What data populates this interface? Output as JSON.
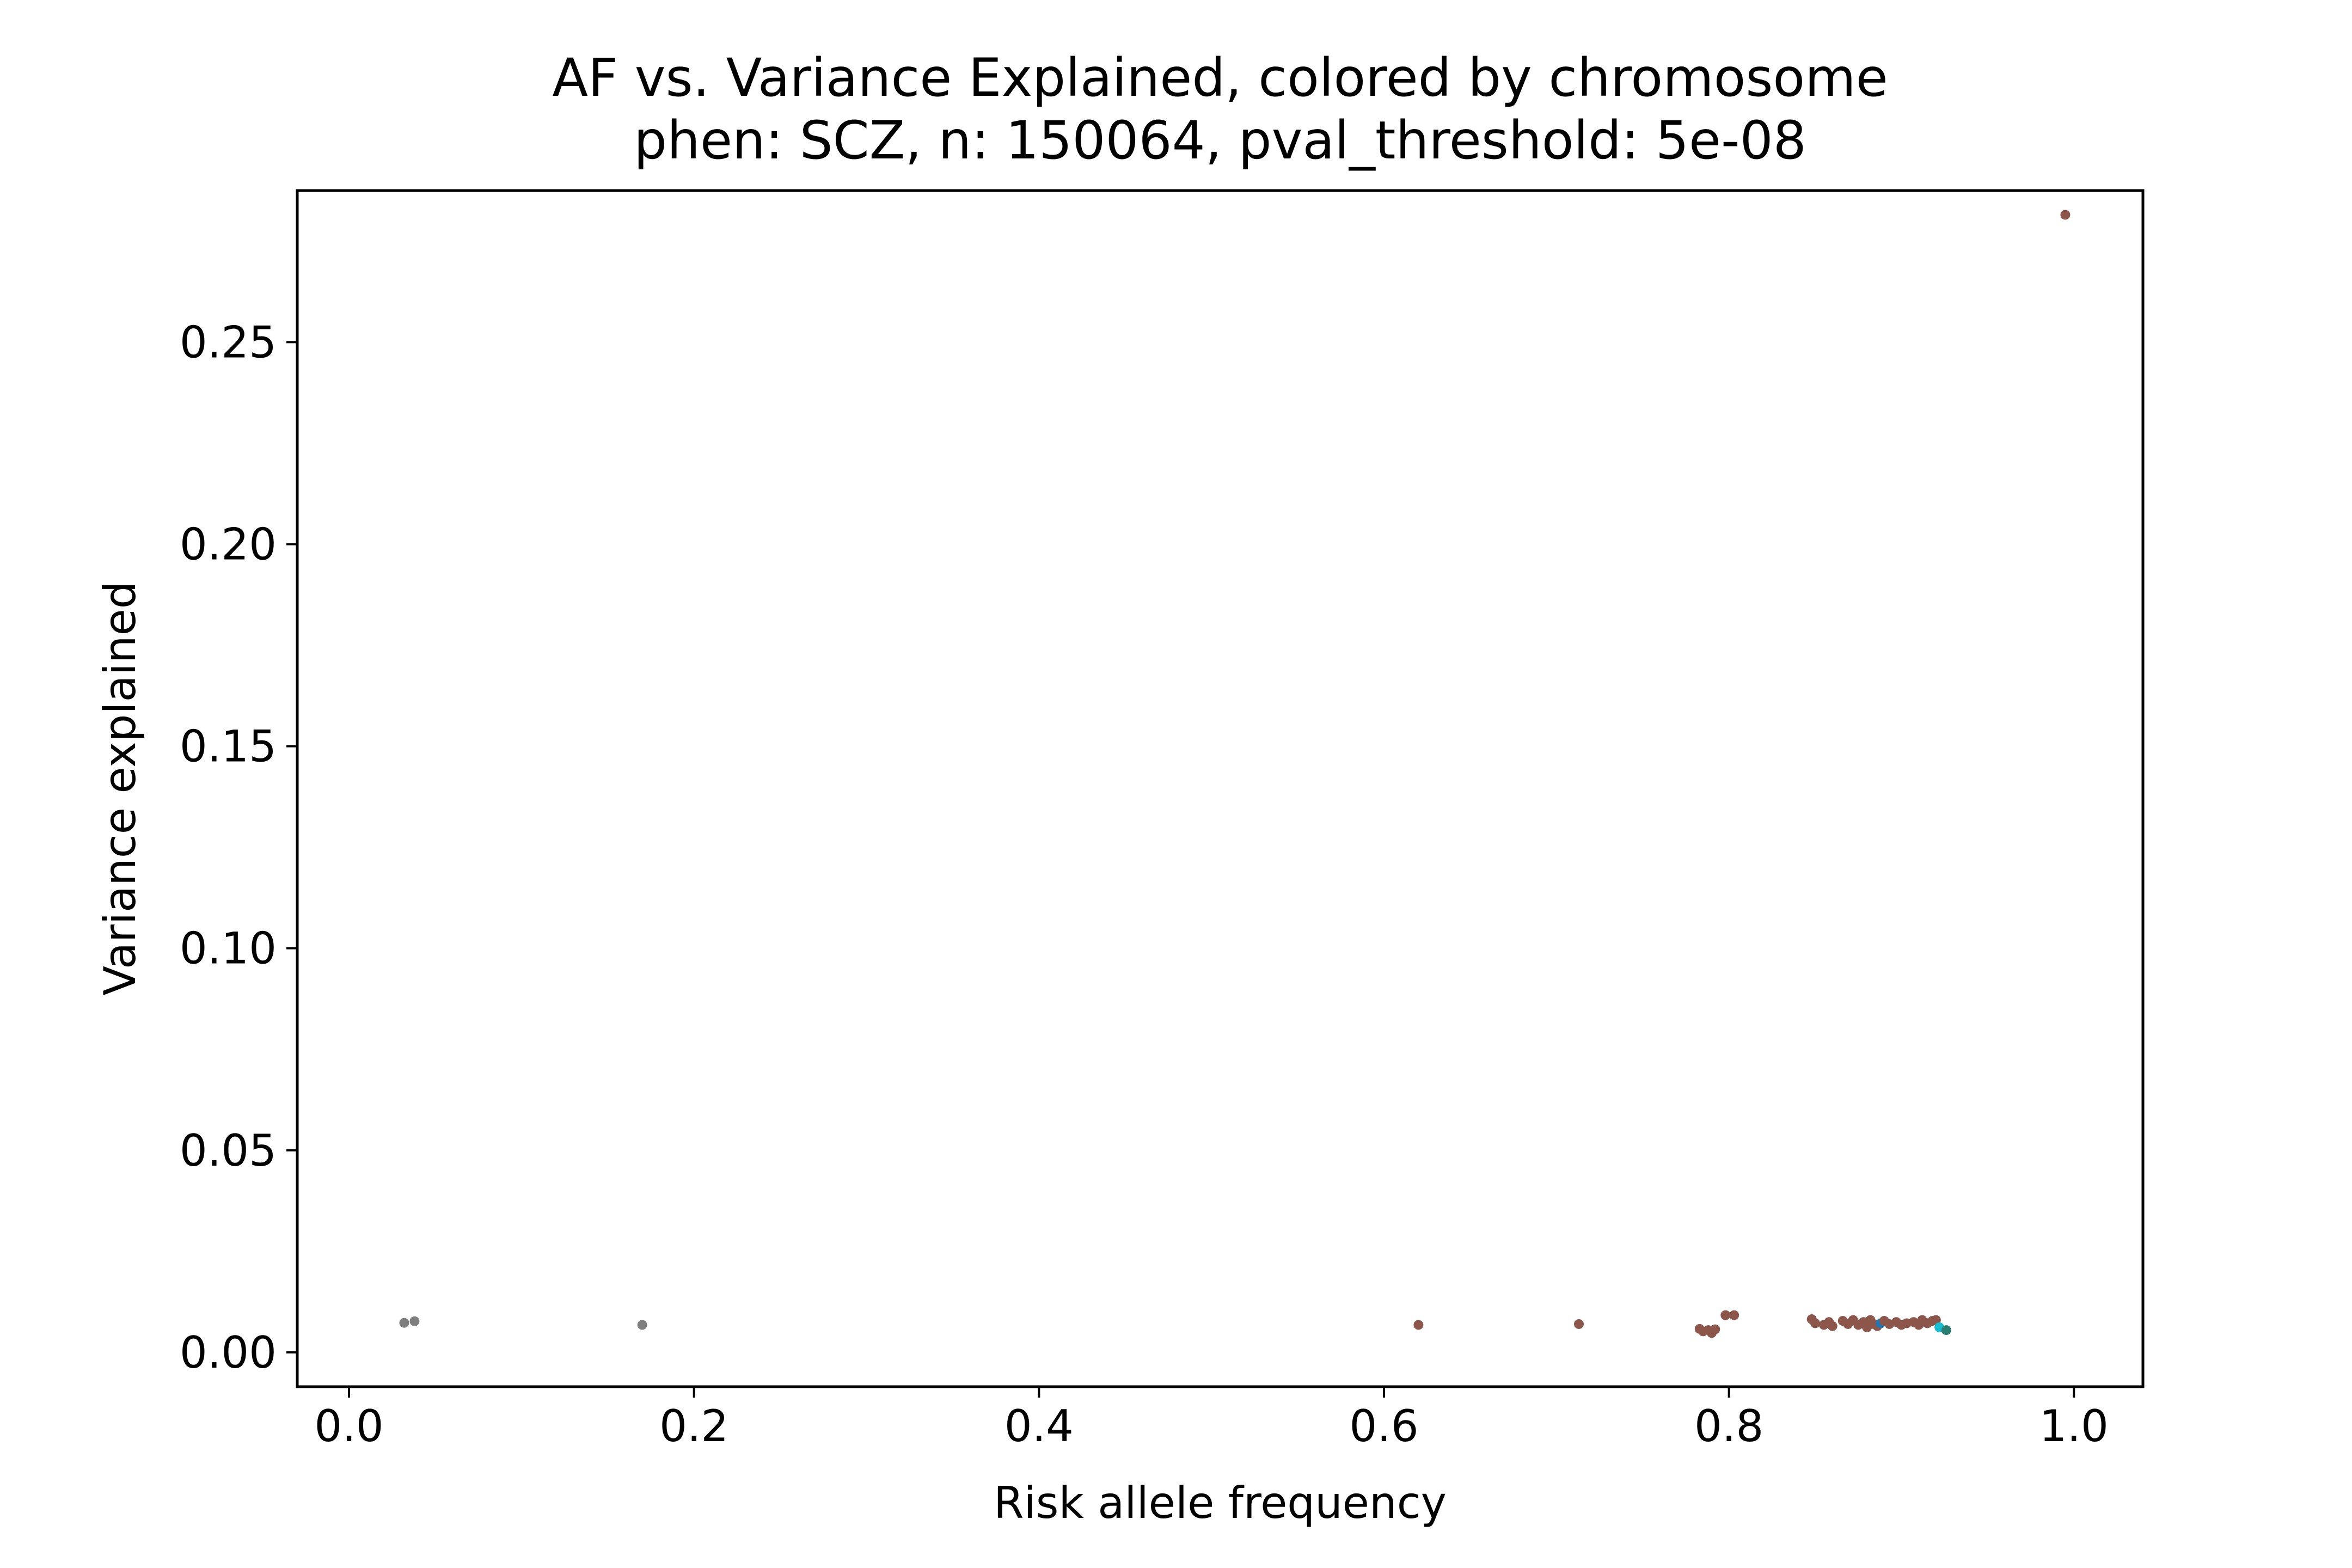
{
  "chart_data": {
    "type": "scatter",
    "title": "AF vs. Variance Explained, colored by chromosome",
    "subtitle": "phen: SCZ, n: 150064, pval_threshold: 5e-08",
    "xlabel": "Risk allele frequency",
    "ylabel": "Variance explained",
    "xlim": [
      -0.03,
      1.04
    ],
    "ylim": [
      -0.0085,
      0.2875
    ],
    "x_ticks": [
      0.0,
      0.2,
      0.4,
      0.6,
      0.8,
      1.0
    ],
    "x_tick_labels": [
      "0.0",
      "0.2",
      "0.4",
      "0.6",
      "0.8",
      "1.0"
    ],
    "y_ticks": [
      0.0,
      0.05,
      0.1,
      0.15,
      0.2,
      0.25
    ],
    "y_tick_labels": [
      "0.00",
      "0.05",
      "0.10",
      "0.15",
      "0.20",
      "0.25"
    ],
    "grid": false,
    "legend": "none",
    "colors": {
      "brown": "#8c564b",
      "gray": "#7f7f7f",
      "blue": "#1f77b4",
      "cyan": "#17becf",
      "teal": "#2a7f72"
    },
    "points": [
      {
        "x": 0.032,
        "y": 0.0073,
        "color": "gray"
      },
      {
        "x": 0.038,
        "y": 0.0077,
        "color": "gray"
      },
      {
        "x": 0.17,
        "y": 0.0068,
        "color": "gray"
      },
      {
        "x": 0.62,
        "y": 0.0068,
        "color": "brown"
      },
      {
        "x": 0.713,
        "y": 0.007,
        "color": "brown"
      },
      {
        "x": 0.783,
        "y": 0.0058,
        "color": "brown"
      },
      {
        "x": 0.785,
        "y": 0.0052,
        "color": "brown"
      },
      {
        "x": 0.788,
        "y": 0.0055,
        "color": "brown"
      },
      {
        "x": 0.79,
        "y": 0.0048,
        "color": "brown"
      },
      {
        "x": 0.792,
        "y": 0.0057,
        "color": "brown"
      },
      {
        "x": 0.798,
        "y": 0.0092,
        "color": "brown"
      },
      {
        "x": 0.803,
        "y": 0.0092,
        "color": "brown"
      },
      {
        "x": 0.848,
        "y": 0.0082,
        "color": "brown"
      },
      {
        "x": 0.85,
        "y": 0.0072,
        "color": "brown"
      },
      {
        "x": 0.855,
        "y": 0.0068,
        "color": "brown"
      },
      {
        "x": 0.858,
        "y": 0.0075,
        "color": "brown"
      },
      {
        "x": 0.86,
        "y": 0.0065,
        "color": "brown"
      },
      {
        "x": 0.866,
        "y": 0.0078,
        "color": "brown"
      },
      {
        "x": 0.869,
        "y": 0.007,
        "color": "brown"
      },
      {
        "x": 0.872,
        "y": 0.008,
        "color": "brown"
      },
      {
        "x": 0.875,
        "y": 0.0068,
        "color": "brown"
      },
      {
        "x": 0.878,
        "y": 0.0075,
        "color": "brown"
      },
      {
        "x": 0.88,
        "y": 0.0062,
        "color": "brown"
      },
      {
        "x": 0.882,
        "y": 0.008,
        "color": "brown"
      },
      {
        "x": 0.884,
        "y": 0.007,
        "color": "brown"
      },
      {
        "x": 0.886,
        "y": 0.0065,
        "color": "brown"
      },
      {
        "x": 0.888,
        "y": 0.0072,
        "color": "blue"
      },
      {
        "x": 0.89,
        "y": 0.0078,
        "color": "brown"
      },
      {
        "x": 0.893,
        "y": 0.007,
        "color": "brown"
      },
      {
        "x": 0.897,
        "y": 0.0075,
        "color": "brown"
      },
      {
        "x": 0.9,
        "y": 0.0068,
        "color": "brown"
      },
      {
        "x": 0.903,
        "y": 0.0072,
        "color": "brown"
      },
      {
        "x": 0.907,
        "y": 0.0075,
        "color": "brown"
      },
      {
        "x": 0.91,
        "y": 0.0068,
        "color": "brown"
      },
      {
        "x": 0.912,
        "y": 0.008,
        "color": "brown"
      },
      {
        "x": 0.915,
        "y": 0.0072,
        "color": "brown"
      },
      {
        "x": 0.918,
        "y": 0.0078,
        "color": "brown"
      },
      {
        "x": 0.92,
        "y": 0.008,
        "color": "brown"
      },
      {
        "x": 0.922,
        "y": 0.0062,
        "color": "cyan"
      },
      {
        "x": 0.926,
        "y": 0.0055,
        "color": "teal"
      },
      {
        "x": 0.995,
        "y": 0.2815,
        "color": "brown"
      }
    ]
  }
}
